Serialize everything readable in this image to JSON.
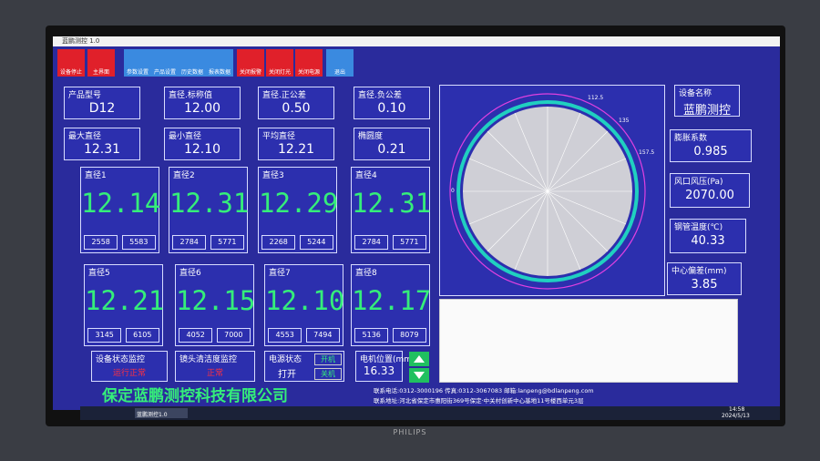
{
  "window": {
    "title": "蓝鹏测控 1.0"
  },
  "toolbar": [
    "设备停止",
    "主界面",
    "参数设置",
    "产品设置",
    "历史数据",
    "报表数据",
    "关闭报警",
    "关闭灯光",
    "关闭电源",
    "退出"
  ],
  "fields": [
    {
      "label": "产品型号",
      "value": "D12"
    },
    {
      "label": "直径.标称值",
      "value": "12.00"
    },
    {
      "label": "直径.正公差",
      "value": "0.50"
    },
    {
      "label": "直径.负公差",
      "value": "0.10"
    },
    {
      "label": "最大直径",
      "value": "12.31"
    },
    {
      "label": "最小直径",
      "value": "12.10"
    },
    {
      "label": "平均直径",
      "value": "12.21"
    },
    {
      "label": "椭圆度",
      "value": "0.21"
    }
  ],
  "diameters": [
    {
      "label": "直径1",
      "value": "12.14",
      "counts": [
        "2558",
        "5583"
      ]
    },
    {
      "label": "直径2",
      "value": "12.31",
      "counts": [
        "2784",
        "5771"
      ]
    },
    {
      "label": "直径3",
      "value": "12.29",
      "counts": [
        "2268",
        "5244"
      ]
    },
    {
      "label": "直径4",
      "value": "12.31",
      "counts": [
        "2784",
        "5771"
      ]
    },
    {
      "label": "直径5",
      "value": "12.21",
      "counts": [
        "3145",
        "6105"
      ]
    },
    {
      "label": "直径6",
      "value": "12.15",
      "counts": [
        "4052",
        "7000"
      ]
    },
    {
      "label": "直径7",
      "value": "12.10",
      "counts": [
        "4553",
        "7494"
      ]
    },
    {
      "label": "直径8",
      "value": "12.17",
      "counts": [
        "5136",
        "8079"
      ]
    }
  ],
  "status": {
    "device_label": "设备状态监控",
    "device_value": "运行正常",
    "lens_label": "镜头清洁度监控",
    "lens_value": "正常",
    "power_label": "电源状态",
    "power_value": "打开",
    "power_on": "开机",
    "power_off": "关机",
    "motor_label": "电机位置(mm)",
    "motor_value": "16.33"
  },
  "company": "保定蓝鹏测控科技有限公司",
  "contact": {
    "line1": "联系电话:0312-3000196 传真:0312-3067083 邮箱:lanpeng@bdlanpeng.com",
    "line2": "联系地址:河北省保定市惠阳街369号保定·中关村创新中心基地11号楼西单元3层"
  },
  "gauge_labels": [
    "112.5",
    "135",
    "157.5",
    "0"
  ],
  "right_fields": [
    {
      "label": "设备名称",
      "value": "蓝鹏测控"
    },
    {
      "label": "膨胀系数",
      "value": "0.985"
    },
    {
      "label": "风口风压(Pa)",
      "value": "2070.00"
    },
    {
      "label": "钢管温度(℃)",
      "value": "40.33"
    },
    {
      "label": "中心偏差(mm)",
      "value": "3.85"
    }
  ],
  "taskbar": {
    "app": "蓝鹏测控1.0",
    "time": "14:58",
    "date": "2024/5/13"
  },
  "brand": "PHILIPS"
}
